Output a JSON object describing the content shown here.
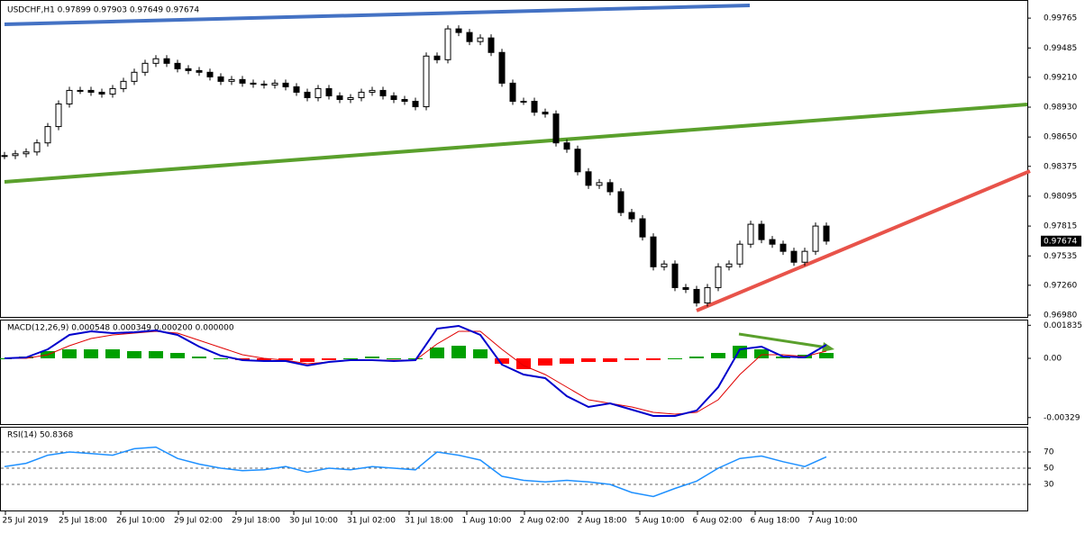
{
  "chart_data": [
    {
      "type": "candlestick",
      "title": "USDCHF,H1  0.97899 0.97903 0.97649 0.97674",
      "series": [
        {
          "name": "USDCHF",
          "values": [
            0.98476,
            0.98493,
            0.9851,
            0.98595,
            0.98748,
            0.9896,
            0.99087,
            0.99087,
            0.9907,
            0.99053,
            0.99104,
            0.99172,
            0.99257,
            0.99341,
            0.99384,
            0.99341,
            0.9929,
            0.99273,
            0.99257,
            0.99214,
            0.99172,
            0.99189,
            0.99155,
            0.99146,
            0.99138,
            0.99155,
            0.99121,
            0.9907,
            0.99019,
            0.99104,
            0.99036,
            0.99002,
            0.99019,
            0.9907,
            0.99087,
            0.99036,
            0.99002,
            0.98985,
            0.98934,
            0.99409,
            0.99375,
            0.99664,
            0.9963,
            0.99545,
            0.99579,
            0.99443,
            0.99155,
            0.98985,
            0.98985,
            0.98883,
            0.98866,
            0.98595,
            0.98536,
            0.98324,
            0.98197,
            0.98222,
            0.98137,
            0.97942,
            0.97883,
            0.97713,
            0.97433,
            0.97459,
            0.97238,
            0.97221,
            0.97094,
            0.97238,
            0.97433,
            0.97459,
            0.97645,
            0.97832,
            0.97688,
            0.97645,
            0.97578,
            0.97476,
            0.97578,
            0.97815,
            0.97674
          ]
        }
      ],
      "ylim": [
        0.96963,
        0.99918
      ],
      "yticks": [
        0.99765,
        0.99485,
        {
          "value": 0.9921,
          "label": "0.99210"
        },
        {
          "value": 0.9893,
          "label": "0.98930"
        },
        {
          "value": 0.9865,
          "label": "0.98650"
        },
        0.98375,
        0.98095,
        0.97815,
        0.97535,
        {
          "value": 0.9726,
          "label": "0.97260"
        },
        {
          "value": 0.9698,
          "label": "0.96980"
        }
      ],
      "x_labels": [
        "25 Jul 2019",
        "25 Jul 18:00",
        "26 Jul 10:00",
        "29 Jul 02:00",
        "29 Jul 18:00",
        "30 Jul 10:00",
        "31 Jul 02:00",
        "31 Jul 18:00",
        "1 Aug 10:00",
        "2 Aug 02:00",
        "2 Aug 18:00",
        "5 Aug 10:00",
        "6 Aug 02:00",
        "6 Aug 18:00",
        "7 Aug 10:00"
      ]
    },
    {
      "type": "macd",
      "title": "MACD(12,26,9) 0.000548 0.000349 0.000200 0.000000",
      "series": [
        {
          "name": "MACD",
          "color": "#0000cc",
          "values": [
            0,
            5e-05,
            0.0005,
            0.0013,
            0.0015,
            0.0014,
            0.00145,
            0.00155,
            0.0013,
            0.00065,
            0.00015,
            -0.0001,
            -0.00015,
            -0.00015,
            -0.0004,
            -0.0002,
            -0.0001,
            -0.0001,
            -0.00015,
            -0.0001,
            0.00165,
            0.0018,
            0.0013,
            -0.00035,
            -0.0009,
            -0.0011,
            -0.0021,
            -0.0027,
            -0.0025,
            -0.00285,
            -0.0032,
            -0.0032,
            -0.0029,
            -0.0016,
            0.0005,
            0.00065,
            0.0001,
            5e-05,
            0.00075
          ]
        },
        {
          "name": "Signal",
          "color": "#e00000",
          "values": [
            0,
            0,
            0.0002,
            0.0007,
            0.0011,
            0.0013,
            0.0014,
            0.0015,
            0.0014,
            0.001,
            0.0006,
            0.0002,
            0,
            -0.0001,
            -0.0003,
            -0.0002,
            -0.0001,
            -0.0001,
            -0.0001,
            -0.0001,
            0.0008,
            0.0015,
            0.0015,
            0.0005,
            -0.0004,
            -0.0009,
            -0.0016,
            -0.0023,
            -0.0025,
            -0.0027,
            -0.003,
            -0.0031,
            -0.003,
            -0.0023,
            -0.0009,
            0.0002,
            0.0002,
            0.0001,
            0.0004
          ]
        },
        {
          "name": "Histogram",
          "color": "#00a000",
          "negative_color": "#ff0000",
          "values": [
            0,
            0.0001,
            0.0004,
            0.0005,
            0.0005,
            0.0005,
            0.0004,
            0.0004,
            0.0003,
            0.0001,
            0,
            -0.0001,
            -0.0001,
            -0.0001,
            -0.0002,
            -0.0001,
            0,
            0.0001,
            0,
            0,
            0.0006,
            0.0007,
            0.0005,
            -0.0003,
            -0.0006,
            -0.0004,
            -0.0003,
            -0.0002,
            -0.0002,
            -0.0001,
            -0.0001,
            0,
            0.0001,
            0.0003,
            0.0007,
            0.0005,
            0.0001,
            0.0002,
            0.0003
          ]
        }
      ],
      "ylim": [
        -0.00365,
        0.0021
      ],
      "yticks": [
        0.001835,
        {
          "value": 0,
          "label": "0.00"
        },
        -0.00329
      ]
    },
    {
      "type": "rsi",
      "title": "RSI(14) 50.8368",
      "series": [
        {
          "name": "RSI",
          "color": "#1e90ff",
          "values": [
            52,
            56,
            66,
            70,
            68,
            66,
            74,
            76,
            62,
            55,
            50,
            47,
            48,
            52,
            45,
            50,
            48,
            52,
            50,
            48,
            70,
            66,
            60,
            40,
            35,
            33,
            35,
            33,
            30,
            20,
            15,
            25,
            34,
            50,
            62,
            65,
            58,
            52,
            64
          ]
        }
      ],
      "ylim": [
        0,
        100
      ],
      "yticks": [
        70,
        50,
        30
      ]
    }
  ]
}
